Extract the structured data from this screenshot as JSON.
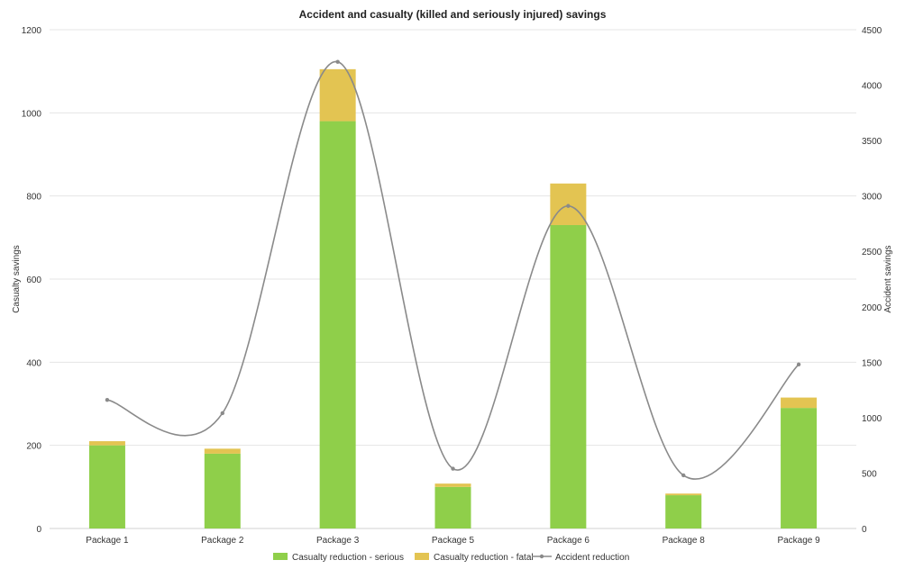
{
  "chart_data": {
    "type": "bar",
    "title": "Accident and casualty (killed and seriously injured) savings",
    "categories": [
      "Package 1",
      "Package 2",
      "Package 3",
      "Package 5",
      "Package 6",
      "Package 8",
      "Package 9"
    ],
    "series": [
      {
        "name": "Casualty reduction - serious",
        "type": "bar",
        "axis": "left",
        "color": "#8fcf4a",
        "values": [
          200,
          180,
          980,
          100,
          730,
          80,
          290
        ]
      },
      {
        "name": "Casualty reduction - fatal",
        "type": "bar",
        "axis": "left",
        "color": "#e3c452",
        "values": [
          10,
          12,
          125,
          8,
          100,
          4,
          25
        ]
      },
      {
        "name": "Accident reduction",
        "type": "line",
        "axis": "right",
        "color": "#8a8a8a",
        "values": [
          1160,
          1040,
          4210,
          540,
          2910,
          480,
          1480
        ]
      }
    ],
    "stacked": true,
    "ylabel": "Casualty savings",
    "y2label": "Accident savings",
    "ylim": [
      0,
      1200
    ],
    "y2lim": [
      0,
      4500
    ],
    "yticks": [
      "0",
      "200",
      "400",
      "600",
      "800",
      "1000",
      "1200"
    ],
    "y2ticks": [
      "0",
      "500",
      "1000",
      "1500",
      "2000",
      "2500",
      "3000",
      "3500",
      "4000",
      "4500"
    ],
    "grid": true,
    "legend": "bottom"
  }
}
